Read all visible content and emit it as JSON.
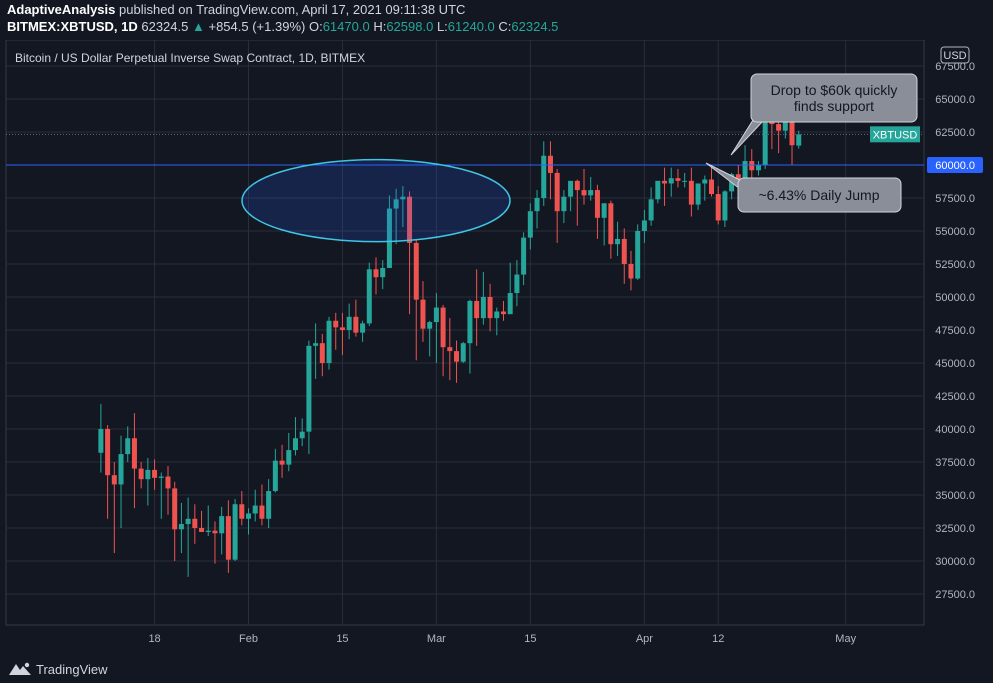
{
  "header": {
    "author": "AdaptiveAnalysis",
    "published": "published on TradingView.com, April 17, 2021 09:11:38 UTC",
    "symbol": "BITMEX:XBTUSD, 1D",
    "price": "62324.5",
    "change_arrow": "▲",
    "change": "+854.5 (+1.39%)",
    "o_label": "O:",
    "o_value": "61470.0",
    "h_label": "H:",
    "h_value": "62598.0",
    "l_label": "L:",
    "l_value": "61240.0",
    "c_label": "C:",
    "c_value": "62324.5"
  },
  "footer": {
    "brand": "TradingView",
    "logo_icon": "tradingview-logo-icon"
  },
  "colors": {
    "background": "#131722",
    "grid": "#2a2e39",
    "axis_text": "#b2b5be",
    "up": "#26a69a",
    "down": "#ef5350",
    "hline": "#2962ff",
    "ellipse": "#3fc5e6"
  },
  "chart_data": {
    "type": "candlestick",
    "title": "Bitcoin / US Dollar Perpetual Inverse Swap Contract, 1D, BITMEX",
    "currency": "USD",
    "ylim": [
      24000,
      70000
    ],
    "y_ticks": [
      27500,
      30000,
      32500,
      35000,
      37500,
      40000,
      42500,
      45000,
      47500,
      50000,
      52500,
      55000,
      57500,
      60000,
      62500,
      65000,
      67500
    ],
    "y_tick_labels": [
      "27500.0",
      "30000.0",
      "32500.0",
      "35000.0",
      "37500.0",
      "40000.0",
      "42500.0",
      "45000.0",
      "47500.0",
      "50000.0",
      "52500.0",
      "55000.0",
      "57500.0",
      "60000.0",
      "62500.0",
      "65000.0",
      "67500.0"
    ],
    "x_ticks": [
      {
        "label": "18",
        "day": 17
      },
      {
        "label": "Feb",
        "day": 31
      },
      {
        "label": "15",
        "day": 45
      },
      {
        "label": "Mar",
        "day": 59
      },
      {
        "label": "15",
        "day": 73
      },
      {
        "label": "Apr",
        "day": 90
      },
      {
        "label": "12",
        "day": 101
      },
      {
        "label": "May",
        "day": 120
      }
    ],
    "x_start_day": 9,
    "candles": [
      [
        38200,
        41900,
        36700,
        40000
      ],
      [
        40000,
        40300,
        33200,
        36500
      ],
      [
        36500,
        37500,
        30600,
        35800
      ],
      [
        35800,
        39500,
        32500,
        38100
      ],
      [
        38100,
        40200,
        37500,
        39300
      ],
      [
        39300,
        41200,
        34000,
        37000
      ],
      [
        37000,
        37500,
        35500,
        36200
      ],
      [
        36200,
        37800,
        34200,
        36900
      ],
      [
        36900,
        37700,
        35400,
        36300
      ],
      [
        36300,
        36700,
        33200,
        36400
      ],
      [
        36400,
        37200,
        33500,
        35500
      ],
      [
        35500,
        36000,
        30000,
        32400
      ],
      [
        32400,
        34400,
        30600,
        32800
      ],
      [
        32800,
        34800,
        28800,
        33200
      ],
      [
        33200,
        34300,
        31300,
        32500
      ],
      [
        32500,
        33800,
        32200,
        32200
      ],
      [
        32200,
        34200,
        31900,
        32300
      ],
      [
        32300,
        33000,
        29800,
        32100
      ],
      [
        32100,
        34100,
        30500,
        33400
      ],
      [
        33400,
        34600,
        29100,
        30100
      ],
      [
        30100,
        34700,
        30000,
        34300
      ],
      [
        34300,
        35300,
        32700,
        33200
      ],
      [
        33200,
        34000,
        32000,
        33600
      ],
      [
        33600,
        35400,
        33000,
        34200
      ],
      [
        34200,
        35800,
        32700,
        33200
      ],
      [
        33200,
        36200,
        32500,
        35300
      ],
      [
        35300,
        38500,
        35200,
        37600
      ],
      [
        37600,
        38800,
        36300,
        37300
      ],
      [
        37300,
        39700,
        36800,
        38400
      ],
      [
        38400,
        40900,
        38000,
        39300
      ],
      [
        39300,
        40800,
        38700,
        39800
      ],
      [
        39800,
        46700,
        38100,
        46300
      ],
      [
        46300,
        48000,
        43800,
        46500
      ],
      [
        46500,
        47200,
        44000,
        45000
      ],
      [
        45000,
        48500,
        44500,
        48200
      ],
      [
        48200,
        48800,
        46000,
        47700
      ],
      [
        47700,
        48800,
        45600,
        47500
      ],
      [
        47500,
        49500,
        46800,
        48500
      ],
      [
        48500,
        49800,
        47000,
        47300
      ],
      [
        47300,
        48200,
        46600,
        48000
      ],
      [
        48000,
        52600,
        47800,
        52100
      ],
      [
        52100,
        53000,
        50200,
        51500
      ],
      [
        51500,
        52800,
        50600,
        52200
      ],
      [
        52200,
        57700,
        52200,
        56700
      ],
      [
        56700,
        58200,
        54000,
        57400
      ],
      [
        57400,
        58400,
        55300,
        57600
      ],
      [
        57600,
        58000,
        48700,
        54100
      ],
      [
        54100,
        54400,
        45200,
        49800
      ],
      [
        49800,
        51200,
        46600,
        47600
      ],
      [
        47600,
        48200,
        45500,
        48100
      ],
      [
        48100,
        50300,
        45000,
        49200
      ],
      [
        49200,
        49400,
        44000,
        46200
      ],
      [
        46200,
        48400,
        43700,
        45900
      ],
      [
        45900,
        46700,
        43500,
        45100
      ],
      [
        45100,
        46600,
        45000,
        46500
      ],
      [
        46500,
        49800,
        44200,
        49700
      ],
      [
        49700,
        52100,
        46300,
        48400
      ],
      [
        48400,
        51900,
        47900,
        50000
      ],
      [
        50000,
        51000,
        47400,
        48400
      ],
      [
        48400,
        49200,
        47100,
        48900
      ],
      [
        48900,
        49700,
        48200,
        48700
      ],
      [
        48700,
        52600,
        48700,
        50300
      ],
      [
        50300,
        52800,
        49300,
        51700
      ],
      [
        51700,
        54900,
        50900,
        54500
      ],
      [
        54500,
        57100,
        53600,
        56500
      ],
      [
        56500,
        58100,
        55200,
        57500
      ],
      [
        57500,
        61800,
        56900,
        60700
      ],
      [
        60700,
        61800,
        57400,
        59400
      ],
      [
        59400,
        59700,
        54100,
        56500
      ],
      [
        56500,
        58100,
        55600,
        57600
      ],
      [
        57600,
        58700,
        56500,
        58800
      ],
      [
        58800,
        58900,
        55400,
        58100
      ],
      [
        58100,
        59700,
        57000,
        57700
      ],
      [
        57700,
        59100,
        57300,
        58100
      ],
      [
        58100,
        58500,
        54400,
        56000
      ],
      [
        56000,
        57100,
        53900,
        57100
      ],
      [
        57100,
        57300,
        52900,
        54000
      ],
      [
        54000,
        55700,
        53100,
        54400
      ],
      [
        54400,
        55200,
        51000,
        52500
      ],
      [
        52500,
        53500,
        50500,
        51400
      ],
      [
        51400,
        55500,
        51300,
        55000
      ],
      [
        55000,
        56600,
        54100,
        55800
      ],
      [
        55800,
        58300,
        55400,
        57400
      ],
      [
        57400,
        58500,
        57100,
        58800
      ],
      [
        58800,
        59800,
        56900,
        58600
      ],
      [
        58600,
        59800,
        57600,
        59000
      ],
      [
        59000,
        59700,
        58300,
        58800
      ],
      [
        58800,
        59400,
        58300,
        58800
      ],
      [
        58800,
        59800,
        56100,
        57000
      ],
      [
        57000,
        58600,
        56600,
        58600
      ],
      [
        58600,
        59200,
        57300,
        58900
      ],
      [
        58900,
        60000,
        57600,
        57800
      ],
      [
        57800,
        58400,
        55500,
        55800
      ],
      [
        55800,
        58100,
        55300,
        58000
      ],
      [
        58000,
        59400,
        57400,
        59300
      ],
      [
        59300,
        60000,
        57800,
        58900
      ],
      [
        58900,
        61500,
        58900,
        60300
      ],
      [
        60300,
        61200,
        58000,
        59600
      ],
      [
        59600,
        60300,
        59200,
        60000
      ],
      [
        60000,
        64000,
        59700,
        63700
      ],
      [
        63700,
        64900,
        61200,
        63100
      ],
      [
        63100,
        63600,
        60900,
        62600
      ],
      [
        62600,
        63600,
        62000,
        63300
      ],
      [
        63300,
        63600,
        60000,
        61500
      ],
      [
        61470,
        62598,
        61240,
        62324.5
      ]
    ],
    "last_price_label": "XBTUSD",
    "last_price": 62324.5,
    "horizontal_line": {
      "price": 60000,
      "label": "60000.0"
    },
    "annotations": [
      {
        "text": "Drop to $60k quickly finds support",
        "lines": [
          "Drop to $60k quickly",
          "finds support"
        ]
      },
      {
        "text": "~6.43% Daily Jump",
        "lines": [
          "~6.43% Daily Jump"
        ]
      }
    ]
  }
}
